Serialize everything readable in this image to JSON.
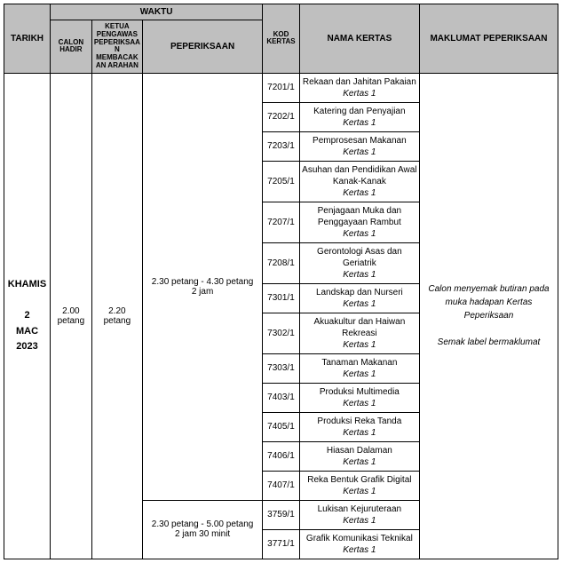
{
  "headers": {
    "tarikh": "TARIKH",
    "waktu": "WAKTU",
    "calon_hadir": "CALON HADIR",
    "ketua_pengawas": "KETUA PENGAWAS PEPERIKSAAN MEMBACAKAN ARAHAN",
    "peperiksaan": "PEPERIKSAAN",
    "kod_kertas": "KOD KERTAS",
    "nama_kertas": "NAMA KERTAS",
    "maklumat": "MAKLUMAT PEPERIKSAAN"
  },
  "date": {
    "day": "KHAMIS",
    "num": "2",
    "month": "MAC",
    "year": "2023"
  },
  "times": {
    "calon_hadir": "2.00 petang",
    "ketua": "2.20 petang"
  },
  "sessions": [
    {
      "time_range": "2.30 petang - 4.30 petang",
      "duration": "2 jam",
      "papers": [
        {
          "kod": "7201/1",
          "name": "Rekaan dan Jahitan Pakaian",
          "sub": "Kertas 1"
        },
        {
          "kod": "7202/1",
          "name": "Katering dan Penyajian",
          "sub": "Kertas 1"
        },
        {
          "kod": "7203/1",
          "name": "Pemprosesan Makanan",
          "sub": "Kertas 1"
        },
        {
          "kod": "7205/1",
          "name": "Asuhan dan Pendidikan Awal Kanak-Kanak",
          "sub": "Kertas 1"
        },
        {
          "kod": "7207/1",
          "name": "Penjagaan Muka dan Penggayaan Rambut",
          "sub": "Kertas 1"
        },
        {
          "kod": "7208/1",
          "name": "Gerontologi Asas dan Geriatrik",
          "sub": "Kertas 1"
        },
        {
          "kod": "7301/1",
          "name": "Landskap dan Nurseri",
          "sub": "Kertas 1"
        },
        {
          "kod": "7302/1",
          "name": "Akuakultur dan Haiwan Rekreasi",
          "sub": "Kertas 1"
        },
        {
          "kod": "7303/1",
          "name": "Tanaman Makanan",
          "sub": "Kertas 1"
        },
        {
          "kod": "7403/1",
          "name": "Produksi Multimedia",
          "sub": "Kertas 1"
        },
        {
          "kod": "7405/1",
          "name": "Produksi Reka Tanda",
          "sub": "Kertas 1"
        },
        {
          "kod": "7406/1",
          "name": "Hiasan Dalaman",
          "sub": "Kertas 1"
        },
        {
          "kod": "7407/1",
          "name": "Reka Bentuk Grafik Digital",
          "sub": "Kertas 1"
        }
      ]
    },
    {
      "time_range": "2.30 petang - 5.00 petang",
      "duration": "2 jam 30 minit",
      "papers": [
        {
          "kod": "3759/1",
          "name": "Lukisan Kejuruteraan",
          "sub": "Kertas 1"
        },
        {
          "kod": "3771/1",
          "name": "Grafik Komunikasi Teknikal",
          "sub": "Kertas 1"
        }
      ]
    }
  ],
  "info": {
    "line1": "Calon menyemak butiran pada muka hadapan Kertas Peperiksaan",
    "line2": "Semak label bermaklumat"
  }
}
